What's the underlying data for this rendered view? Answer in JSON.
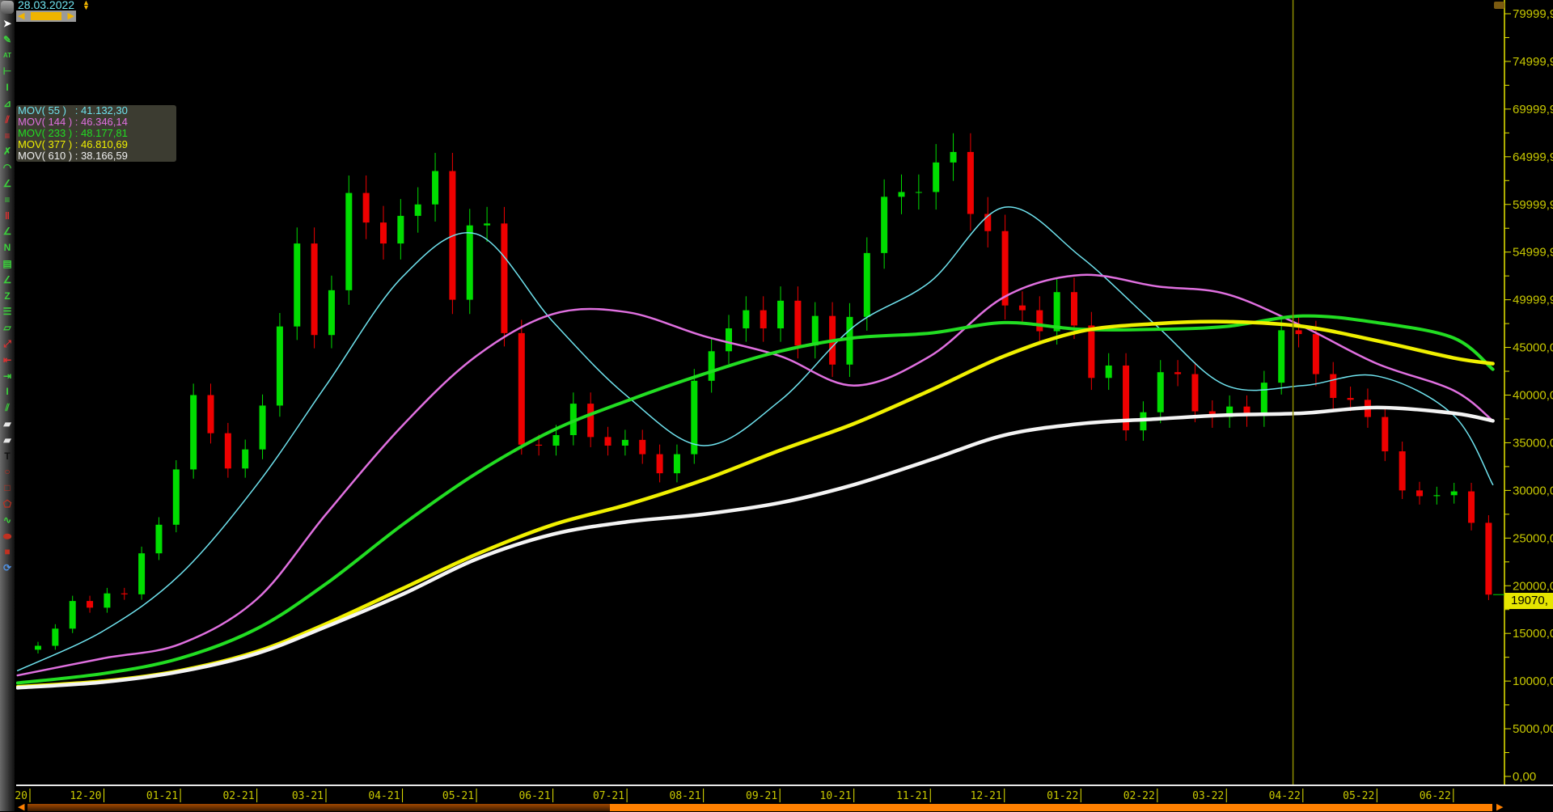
{
  "header": {
    "cursor_date": "28.03.2022"
  },
  "toolbar": [
    {
      "name": "pointer",
      "glyph": "➤",
      "color": "#ffffff"
    },
    {
      "name": "pencil",
      "glyph": "✎",
      "color": "#3cd03c"
    },
    {
      "name": "auto-trend",
      "glyph": "AT",
      "color": "#3cd03c"
    },
    {
      "name": "horizontal-segment",
      "glyph": "⊢",
      "color": "#3cd03c"
    },
    {
      "name": "vertical-segment",
      "glyph": "I",
      "color": "#3cd03c"
    },
    {
      "name": "channel",
      "glyph": "⊿",
      "color": "#3cd03c"
    },
    {
      "name": "parallel-lines",
      "glyph": "⫽",
      "color": "#e03030"
    },
    {
      "name": "horizontal-lines",
      "glyph": "≡",
      "color": "#e03030"
    },
    {
      "name": "fibonacci-arc",
      "glyph": "✗",
      "color": "#3cd03c"
    },
    {
      "name": "arc",
      "glyph": "◠",
      "color": "#3cd03c"
    },
    {
      "name": "fibonacci-fan",
      "glyph": "∠",
      "color": "#3cd03c"
    },
    {
      "name": "fibonacci-levels",
      "glyph": "≡",
      "color": "#3cd03c"
    },
    {
      "name": "fibonacci-time",
      "glyph": "‖",
      "color": "#e03030"
    },
    {
      "name": "speed-lines",
      "glyph": "∠",
      "color": "#3cd03c"
    },
    {
      "name": "zigzag",
      "glyph": "N",
      "color": "#3cd03c"
    },
    {
      "name": "grid",
      "glyph": "▤",
      "color": "#3cd03c"
    },
    {
      "name": "gann-fan",
      "glyph": "∠",
      "color": "#3cd03c"
    },
    {
      "name": "zigzag-lines",
      "glyph": "Z",
      "color": "#3cd03c"
    },
    {
      "name": "ladder",
      "glyph": "☰",
      "color": "#3cd03c"
    },
    {
      "name": "ruler",
      "glyph": "▱",
      "color": "#3cd03c"
    },
    {
      "name": "arrow-line",
      "glyph": "⤢",
      "color": "#e03030"
    },
    {
      "name": "left-arrow-segment",
      "glyph": "⇤",
      "color": "#e03030"
    },
    {
      "name": "right-arrow-segment",
      "glyph": "⇥",
      "color": "#3cd03c"
    },
    {
      "name": "vertical-bar",
      "glyph": "I",
      "color": "#3cd03c"
    },
    {
      "name": "double-line",
      "glyph": "⫽",
      "color": "#3cd03c"
    },
    {
      "name": "eraser",
      "glyph": "▰",
      "color": "#e8e8e8"
    },
    {
      "name": "eraser-all",
      "glyph": "▰",
      "color": "#e8e8e8"
    },
    {
      "name": "text",
      "glyph": "T",
      "color": "#111111"
    },
    {
      "name": "ellipse",
      "glyph": "○",
      "color": "#c03020"
    },
    {
      "name": "rectangle",
      "glyph": "□",
      "color": "#c03020"
    },
    {
      "name": "polygon",
      "glyph": "⬠",
      "color": "#c03020"
    },
    {
      "name": "freehand",
      "glyph": "∿",
      "color": "#3cd03c"
    },
    {
      "name": "filled-ellipse",
      "glyph": "⬬",
      "color": "#c03020"
    },
    {
      "name": "filled-rectangle",
      "glyph": "■",
      "color": "#c03020"
    },
    {
      "name": "refresh",
      "glyph": "⟳",
      "color": "#5090e0"
    }
  ],
  "legend": [
    {
      "label": "MOV( 55 )   : 41.132,30",
      "color": "#6fe3ef"
    },
    {
      "label": "MOV( 144 ) : 46.346,14",
      "color": "#e070e0"
    },
    {
      "label": "MOV( 233 ) : 48.177,81",
      "color": "#22dd22"
    },
    {
      "label": "MOV( 377 ) : 46.810,69",
      "color": "#f0f000"
    },
    {
      "label": "MOV( 610 ) : 38.166,59",
      "color": "#f0f0f0"
    }
  ],
  "price_tag": "19070,",
  "chart_data": {
    "type": "candlestick",
    "cursor_date": "2022-03-28",
    "last_price": 19070,
    "ylim": [
      0,
      80000
    ],
    "y_ticks": [
      {
        "value": 80000,
        "label": "79999,9"
      },
      {
        "value": 75000,
        "label": "74999,9"
      },
      {
        "value": 70000,
        "label": "69999,9"
      },
      {
        "value": 65000,
        "label": "64999,9"
      },
      {
        "value": 60000,
        "label": "59999,9"
      },
      {
        "value": 55000,
        "label": "54999,9"
      },
      {
        "value": 50000,
        "label": "49999,9"
      },
      {
        "value": 45000,
        "label": "45000,0"
      },
      {
        "value": 40000,
        "label": "40000,0"
      },
      {
        "value": 35000,
        "label": "35000,0"
      },
      {
        "value": 30000,
        "label": "30000,0"
      },
      {
        "value": 25000,
        "label": "25000,0"
      },
      {
        "value": 20000,
        "label": "20000,0"
      },
      {
        "value": 15000,
        "label": "15000,0"
      },
      {
        "value": 10000,
        "label": "10000,0"
      },
      {
        "value": 5000,
        "label": "5000,00"
      },
      {
        "value": 0,
        "label": "0,00"
      }
    ],
    "x_ticks": [
      {
        "date": "2020-11-01",
        "label": "-20"
      },
      {
        "date": "2020-12-01",
        "label": "12-20"
      },
      {
        "date": "2021-01-01",
        "label": "01-21"
      },
      {
        "date": "2021-02-01",
        "label": "02-21"
      },
      {
        "date": "2021-03-01",
        "label": "03-21"
      },
      {
        "date": "2021-04-01",
        "label": "04-21"
      },
      {
        "date": "2021-05-01",
        "label": "05-21"
      },
      {
        "date": "2021-06-01",
        "label": "06-21"
      },
      {
        "date": "2021-07-01",
        "label": "07-21"
      },
      {
        "date": "2021-08-01",
        "label": "08-21"
      },
      {
        "date": "2021-09-01",
        "label": "09-21"
      },
      {
        "date": "2021-10-01",
        "label": "10-21"
      },
      {
        "date": "2021-11-01",
        "label": "11-21"
      },
      {
        "date": "2021-12-01",
        "label": "12-21"
      },
      {
        "date": "2022-01-01",
        "label": "01-22"
      },
      {
        "date": "2022-02-01",
        "label": "02-22"
      },
      {
        "date": "2022-03-01",
        "label": "03-22"
      },
      {
        "date": "2022-04-01",
        "label": "04-22"
      },
      {
        "date": "2022-05-01",
        "label": "05-22"
      },
      {
        "date": "2022-06-01",
        "label": "06-22"
      }
    ],
    "weekly_start": "2020-11-01",
    "weekly_close": [
      13700,
      15500,
      18400,
      17700,
      19200,
      19100,
      23400,
      26400,
      32200,
      40000,
      36000,
      32300,
      34300,
      38900,
      47200,
      55900,
      46300,
      51000,
      61200,
      58100,
      55900,
      58800,
      60000,
      63500,
      50000,
      57800,
      58000,
      46500,
      34800,
      34700,
      35800,
      39100,
      35600,
      34700,
      35300,
      33800,
      31800,
      33800,
      41500,
      44600,
      47000,
      48900,
      47000,
      49900,
      45200,
      48300,
      43200,
      48200,
      54900,
      60800,
      61300,
      61300,
      64400,
      65500,
      59000,
      57200,
      49400,
      48900,
      46700,
      50800,
      47300,
      41800,
      43100,
      36300,
      38200,
      42400,
      42200,
      38300,
      37700,
      38800,
      37800,
      41300,
      46800,
      46400,
      42200,
      39700,
      39500,
      37700,
      34100,
      30000,
      29400,
      29500,
      29900,
      26600,
      19070
    ],
    "up_color": "#00dd00",
    "down_color": "#ee0000",
    "ma_dates": [
      "2020-10-27",
      "2020-12-01",
      "2021-01-01",
      "2021-02-01",
      "2021-03-01",
      "2021-04-01",
      "2021-05-01",
      "2021-06-01",
      "2021-07-01",
      "2021-08-01",
      "2021-09-01",
      "2021-10-01",
      "2021-11-01",
      "2021-12-01",
      "2022-01-01",
      "2022-02-01",
      "2022-03-01",
      "2022-04-01",
      "2022-05-01",
      "2022-06-01",
      "2022-06-17"
    ],
    "series": [
      {
        "name": "MOV( 55 )",
        "color": "#6fe3ef",
        "width": 1.5,
        "values": [
          11100,
          15300,
          21200,
          30600,
          41000,
          52400,
          56900,
          47700,
          39900,
          34700,
          39400,
          47200,
          51900,
          59700,
          54500,
          47200,
          41000,
          41000,
          42000,
          37900,
          30600
        ]
      },
      {
        "name": "MOV( 144 )",
        "color": "#e070e0",
        "width": 2.5,
        "values": [
          10600,
          12400,
          13900,
          18600,
          27500,
          36800,
          44100,
          48500,
          48700,
          46200,
          44100,
          41000,
          44100,
          50300,
          52600,
          51400,
          50600,
          47200,
          43300,
          40500,
          37300
        ]
      },
      {
        "name": "MOV( 233 )",
        "color": "#22dd22",
        "width": 4,
        "values": [
          9800,
          10800,
          12400,
          15500,
          20200,
          26400,
          31800,
          36300,
          39400,
          42200,
          44600,
          46000,
          46500,
          47600,
          46900,
          46900,
          47200,
          48300,
          47600,
          46000,
          42700
        ]
      },
      {
        "name": "MOV( 377 )",
        "color": "#f0f000",
        "width": 4.5,
        "values": [
          9400,
          10000,
          11100,
          13100,
          16000,
          19700,
          23300,
          26400,
          28500,
          31100,
          34200,
          37000,
          40500,
          44100,
          46700,
          47500,
          47700,
          47200,
          45700,
          43900,
          43300
        ]
      },
      {
        "name": "MOV( 610 )",
        "color": "#f4f4f4",
        "width": 4.5,
        "values": [
          9300,
          9900,
          11000,
          12900,
          15700,
          19100,
          22800,
          25400,
          26700,
          27500,
          28700,
          30600,
          33200,
          35800,
          37000,
          37500,
          37900,
          38100,
          38700,
          38100,
          37300
        ]
      }
    ],
    "axis_color": "#e6e600",
    "cursor_color": "#8c8c00"
  }
}
